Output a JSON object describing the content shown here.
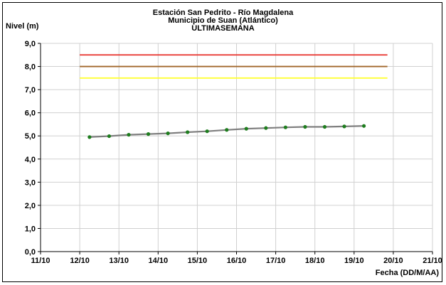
{
  "chart_data": {
    "type": "line",
    "title": "Estación San Pedrito - Río Magdalena",
    "subtitle": "Municipio de Suan (Atlántico)",
    "subtitle2": "ULTIMASEMANA",
    "ylabel": "Nivel (m)",
    "xlabel": "Fecha (DD/M/AA)",
    "xlim": [
      "11/10",
      "21/10"
    ],
    "ylim": [
      0,
      9
    ],
    "x_ticks": [
      "11/10",
      "12/10",
      "13/10",
      "14/10",
      "15/10",
      "16/10",
      "17/10",
      "18/10",
      "19/10",
      "20/10",
      "21/10"
    ],
    "y_ticks": [
      "0,0",
      "1,0",
      "2,0",
      "3,0",
      "4,0",
      "5,0",
      "6,0",
      "7,0",
      "8,0",
      "9,0"
    ],
    "grid": true,
    "thresholds": [
      {
        "value": 8.5,
        "color": "#e8302a",
        "x": [
          12.0,
          19.85
        ]
      },
      {
        "value": 8.0,
        "color": "#a0662a",
        "x": [
          12.0,
          19.85
        ]
      },
      {
        "value": 7.5,
        "color": "#ffff33",
        "x": [
          12.0,
          19.85
        ]
      }
    ],
    "series": [
      {
        "line_color": "#7f7f7f",
        "marker_color": "#1e7d1e",
        "x": [
          12.25,
          12.75,
          13.25,
          13.75,
          14.25,
          14.75,
          15.25,
          15.75,
          16.25,
          16.75,
          17.25,
          17.75,
          18.25,
          18.75,
          19.25
        ],
        "y": [
          4.95,
          4.99,
          5.05,
          5.08,
          5.11,
          5.16,
          5.2,
          5.26,
          5.31,
          5.34,
          5.37,
          5.39,
          5.39,
          5.41,
          5.43
        ]
      }
    ]
  }
}
